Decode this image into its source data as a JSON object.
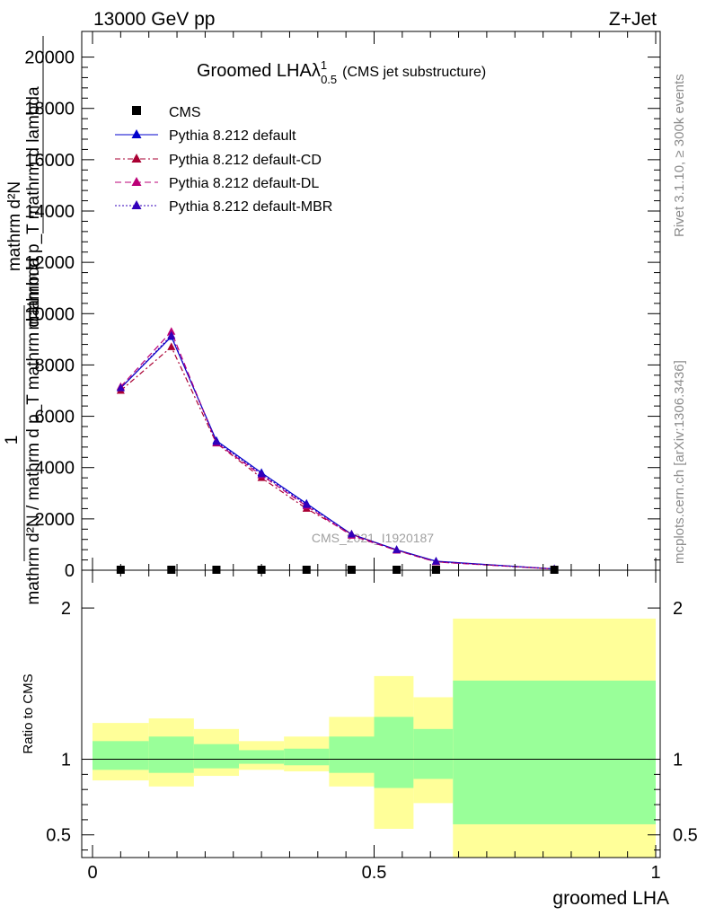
{
  "header": {
    "left": "13000 GeV pp",
    "right": "Z+Jet"
  },
  "side_labels": {
    "rivet": "Rivet 3.1.10, ≥ 300k events",
    "mcplots": "mcplots.cern.ch [arXiv:1306.3436]"
  },
  "chart_data": [
    {
      "type": "line",
      "title": "Groomed LHAλ",
      "title_sup": "1",
      "title_sub": "0.5",
      "title_note": "(CMS jet substructure)",
      "ylabel_top": "1",
      "ylabel_numer": "mathrm d²N",
      "ylabel_denom": "mathrm d²N / mathrm d p_T mathrm d lambda",
      "ylabel_overlay_a": "mathrm d p_T mathrm d lambda",
      "watermark": "CMS_2021_I1920187",
      "ylim": [
        0,
        21000
      ],
      "yticks": [
        0,
        2000,
        4000,
        6000,
        8000,
        10000,
        12000,
        14000,
        16000,
        18000,
        20000
      ],
      "ytick_labels": [
        "0",
        "2000",
        "4000",
        "6000",
        "8000",
        "10000",
        "12000",
        "14000",
        "16000",
        "18000",
        "20000"
      ],
      "xlim": [
        -0.03,
        1.0
      ],
      "x": [
        0.05,
        0.14,
        0.22,
        0.3,
        0.38,
        0.46,
        0.54,
        0.61,
        0.82
      ],
      "cms": [
        0,
        0,
        0,
        0,
        0,
        0,
        0,
        0,
        0
      ],
      "legend": [
        "CMS",
        "Pythia 8.212 default",
        "Pythia 8.212 default-CD",
        "Pythia 8.212 default-DL",
        "Pythia 8.212 default-MBR"
      ],
      "series": [
        {
          "name": "Pythia 8.212 default",
          "color": "#0000cc",
          "dash": "",
          "values": [
            7100,
            9100,
            5050,
            3800,
            2600,
            1400,
            800,
            350,
            50
          ]
        },
        {
          "name": "Pythia 8.212 default-CD",
          "color": "#aa0033",
          "dash": "6 3 2 3",
          "values": [
            7000,
            8700,
            4950,
            3600,
            2400,
            1400,
            780,
            330,
            45
          ]
        },
        {
          "name": "Pythia 8.212 default-DL",
          "color": "#bb0077",
          "dash": "7 4",
          "values": [
            7150,
            9300,
            4960,
            3700,
            2500,
            1350,
            770,
            320,
            45
          ]
        },
        {
          "name": "Pythia 8.212 default-MBR",
          "color": "#3300bb",
          "dash": "2 2",
          "values": [
            7100,
            9150,
            5000,
            3750,
            2550,
            1400,
            790,
            340,
            50
          ]
        }
      ]
    },
    {
      "type": "area",
      "ylabel": "Ratio to CMS",
      "xlabel": "groomed LHA",
      "ylim": [
        0.35,
        2.25
      ],
      "yticks": [
        0.5,
        1,
        2
      ],
      "ytick_labels": [
        "0.5",
        "1",
        "2"
      ],
      "xticks": [
        0,
        0.5,
        1
      ],
      "xtick_labels": [
        "0",
        "0.5",
        "1"
      ],
      "bands": [
        {
          "x0": 0.0,
          "x1": 0.1,
          "yellow": [
            0.86,
            1.24
          ],
          "green": [
            0.93,
            1.12
          ]
        },
        {
          "x0": 0.1,
          "x1": 0.18,
          "yellow": [
            0.82,
            1.27
          ],
          "green": [
            0.91,
            1.15
          ]
        },
        {
          "x0": 0.18,
          "x1": 0.26,
          "yellow": [
            0.89,
            1.2
          ],
          "green": [
            0.94,
            1.1
          ]
        },
        {
          "x0": 0.26,
          "x1": 0.34,
          "yellow": [
            0.93,
            1.12
          ],
          "green": [
            0.97,
            1.06
          ]
        },
        {
          "x0": 0.34,
          "x1": 0.42,
          "yellow": [
            0.92,
            1.15
          ],
          "green": [
            0.96,
            1.07
          ]
        },
        {
          "x0": 0.42,
          "x1": 0.5,
          "yellow": [
            0.82,
            1.28
          ],
          "green": [
            0.91,
            1.15
          ]
        },
        {
          "x0": 0.5,
          "x1": 0.57,
          "yellow": [
            0.54,
            1.55
          ],
          "green": [
            0.81,
            1.28
          ]
        },
        {
          "x0": 0.57,
          "x1": 0.64,
          "yellow": [
            0.71,
            1.41
          ],
          "green": [
            0.87,
            1.2
          ]
        },
        {
          "x0": 0.64,
          "x1": 1.0,
          "yellow": [
            0.35,
            1.93
          ],
          "green": [
            0.57,
            1.52
          ]
        }
      ],
      "colors": {
        "yellow": "#ffff99",
        "green": "#99ff99"
      }
    }
  ]
}
